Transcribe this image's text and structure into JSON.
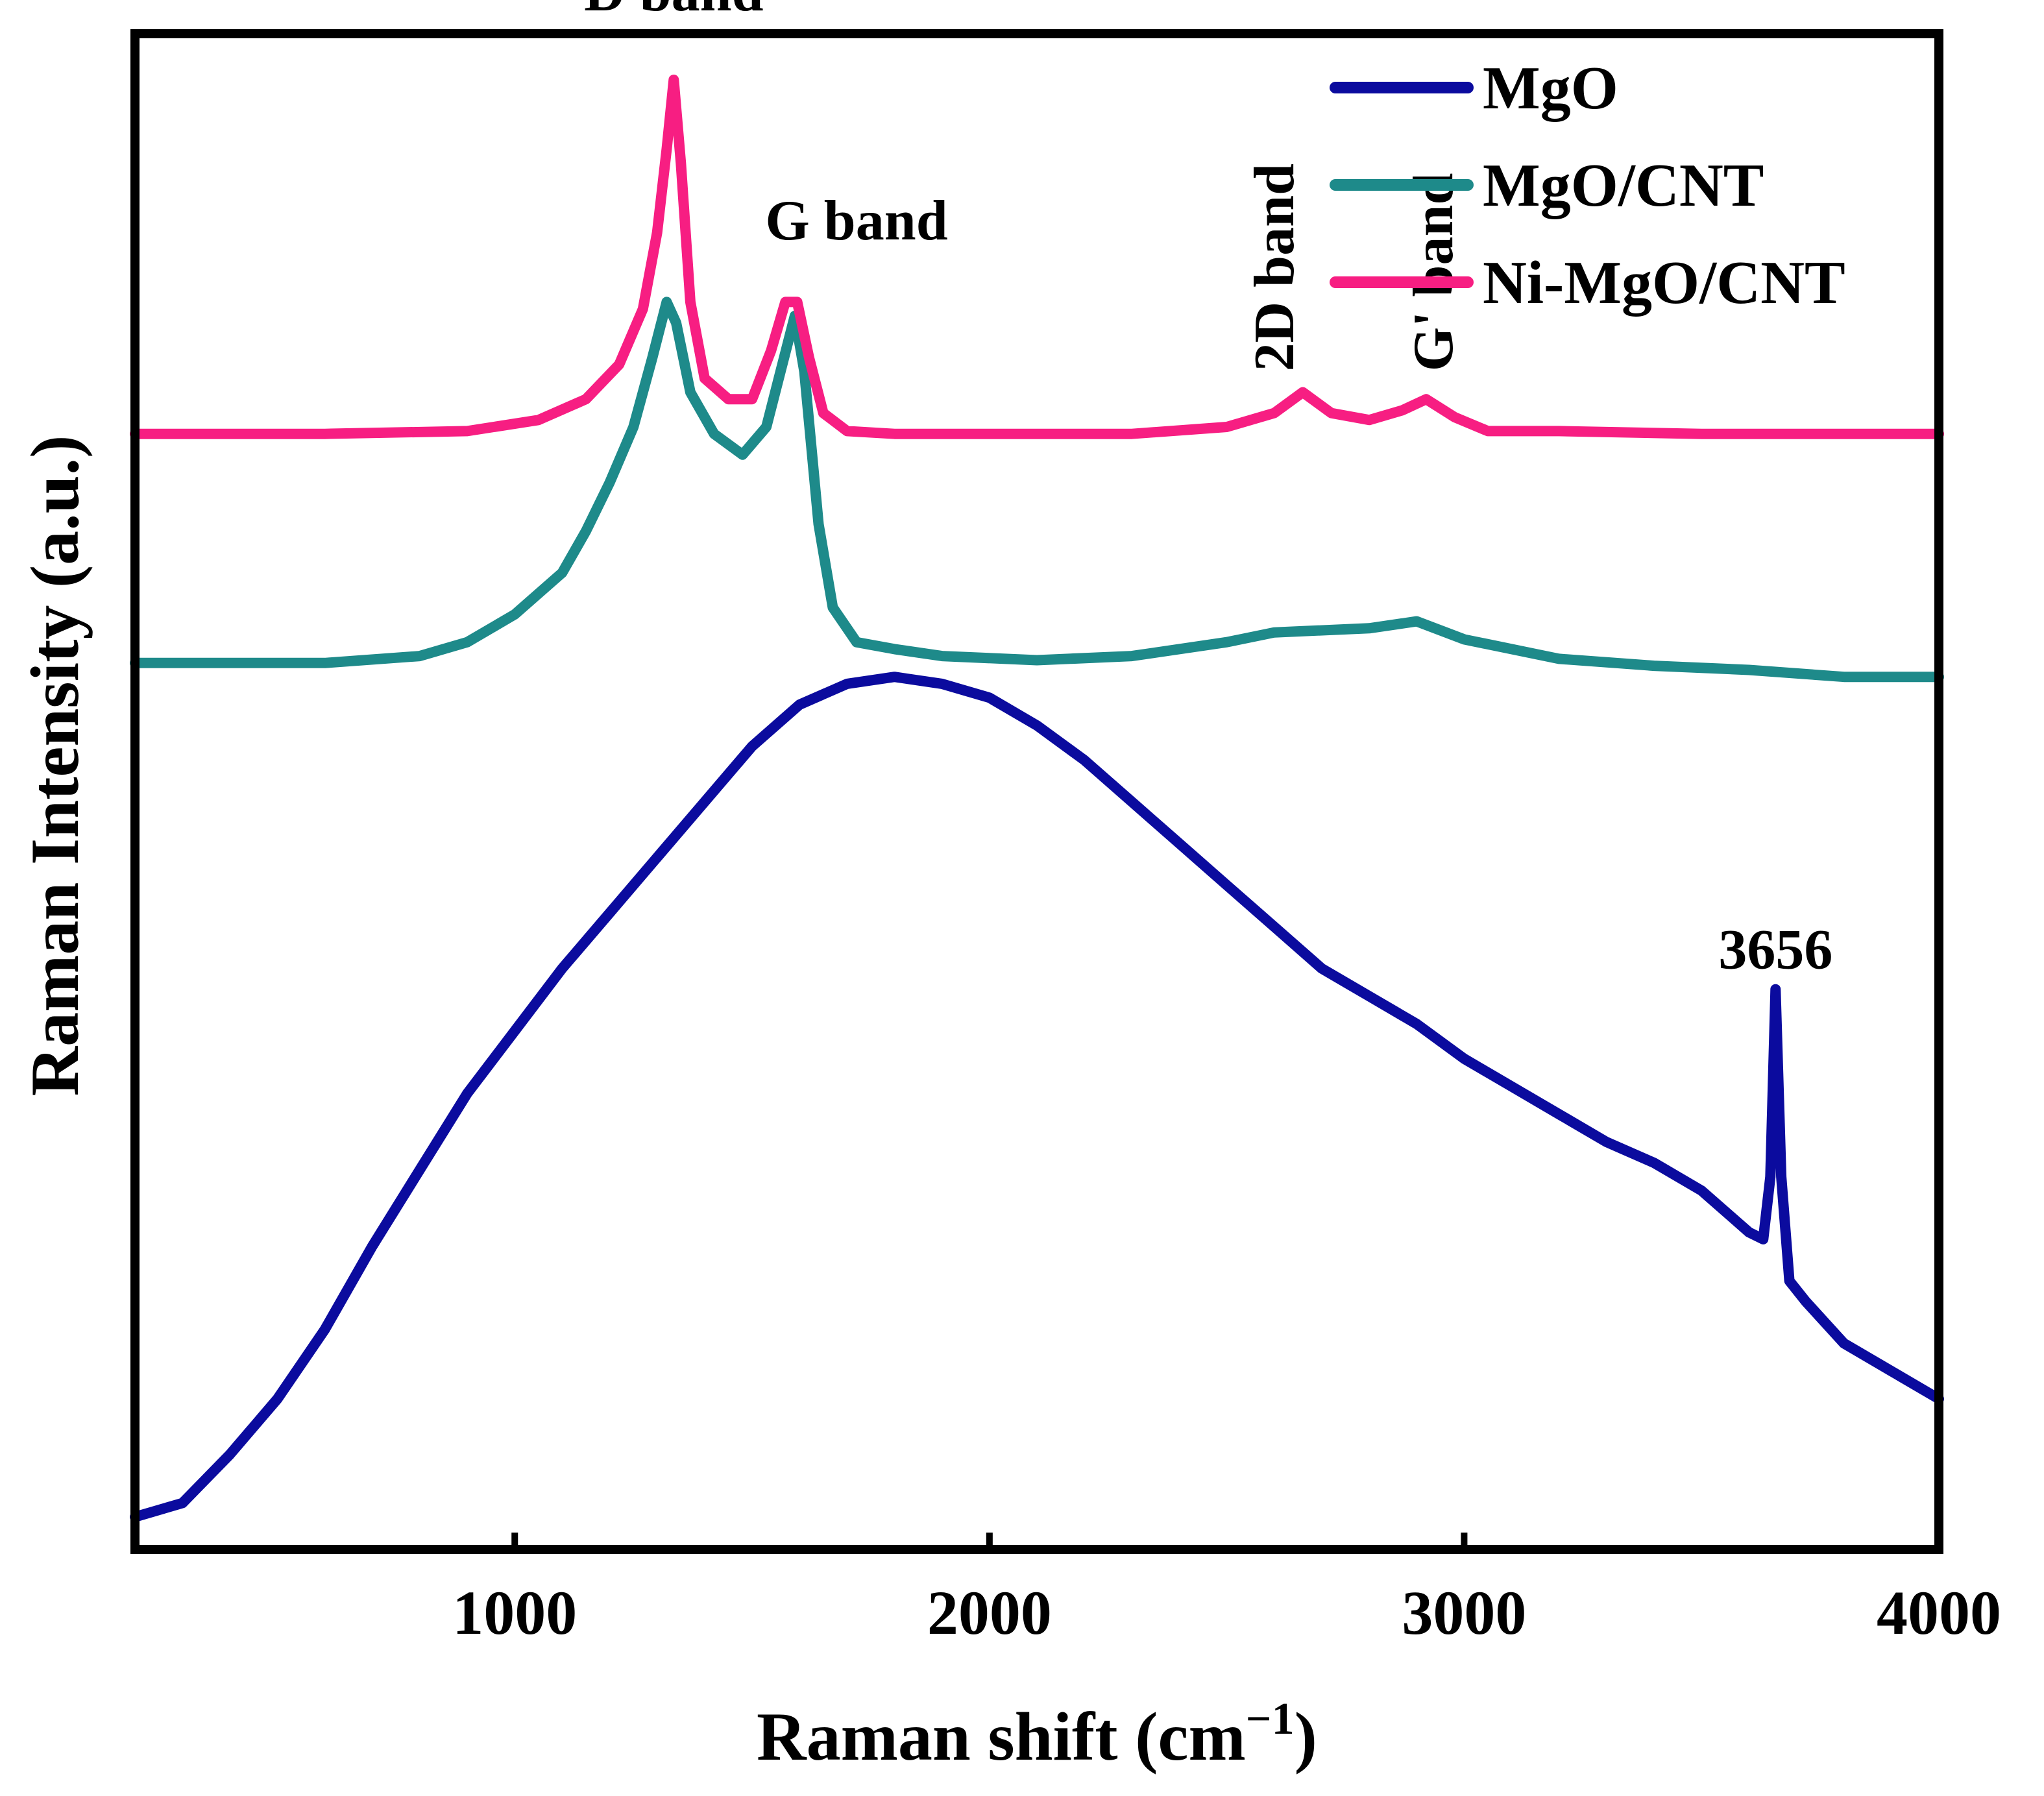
{
  "chart_data": {
    "type": "line",
    "title": "",
    "xlabel": "Raman shift (cm",
    "xlabel_superscript": "−1",
    "xlabel_close": ")",
    "ylabel": "Raman Intensity (a.u.)",
    "xlim": [
      200,
      4000
    ],
    "ylim": [
      0,
      1
    ],
    "x_ticks": [
      1000,
      2000,
      3000,
      4000
    ],
    "x_tick_labels": [
      "1000",
      "2000",
      "3000",
      "4000"
    ],
    "y_ticks_shown": false,
    "grid": false,
    "legend_position": "top-right",
    "series": [
      {
        "name": "MgO",
        "color": "#0b0b9e",
        "x": [
          200,
          300,
          400,
          500,
          600,
          700,
          800,
          900,
          1000,
          1100,
          1200,
          1300,
          1400,
          1500,
          1600,
          1700,
          1800,
          1900,
          2000,
          2100,
          2200,
          2300,
          2400,
          2500,
          2600,
          2700,
          2800,
          2900,
          3000,
          3100,
          3200,
          3300,
          3400,
          3500,
          3600,
          3630,
          3645,
          3656,
          3668,
          3685,
          3720,
          3800,
          3900,
          4000
        ],
        "y": [
          0.015,
          0.025,
          0.06,
          0.1,
          0.15,
          0.21,
          0.265,
          0.32,
          0.365,
          0.41,
          0.45,
          0.49,
          0.53,
          0.57,
          0.6,
          0.615,
          0.62,
          0.615,
          0.605,
          0.585,
          0.56,
          0.53,
          0.5,
          0.47,
          0.44,
          0.41,
          0.39,
          0.37,
          0.345,
          0.325,
          0.305,
          0.285,
          0.27,
          0.25,
          0.22,
          0.215,
          0.26,
          0.395,
          0.26,
          0.185,
          0.17,
          0.14,
          0.12,
          0.1
        ]
      },
      {
        "name": "MgO/CNT",
        "color": "#1e8a8a",
        "x": [
          200,
          400,
          600,
          800,
          900,
          1000,
          1100,
          1150,
          1200,
          1250,
          1290,
          1320,
          1340,
          1370,
          1420,
          1480,
          1530,
          1560,
          1590,
          1610,
          1640,
          1670,
          1720,
          1800,
          1900,
          2100,
          2300,
          2500,
          2600,
          2800,
          2900,
          3000,
          3200,
          3400,
          3600,
          3800,
          4000
        ],
        "y": [
          0.63,
          0.63,
          0.63,
          0.635,
          0.645,
          0.665,
          0.695,
          0.725,
          0.76,
          0.8,
          0.85,
          0.89,
          0.875,
          0.825,
          0.795,
          0.78,
          0.8,
          0.84,
          0.88,
          0.84,
          0.73,
          0.67,
          0.645,
          0.64,
          0.635,
          0.632,
          0.635,
          0.645,
          0.652,
          0.655,
          0.66,
          0.647,
          0.633,
          0.628,
          0.625,
          0.62,
          0.62
        ]
      },
      {
        "name": "Ni-MgO/CNT",
        "color": "#f71e82",
        "x": [
          200,
          600,
          900,
          1050,
          1150,
          1220,
          1270,
          1300,
          1320,
          1335,
          1350,
          1370,
          1400,
          1450,
          1500,
          1540,
          1570,
          1595,
          1620,
          1650,
          1700,
          1800,
          2000,
          2300,
          2500,
          2600,
          2660,
          2720,
          2800,
          2870,
          2920,
          2980,
          3050,
          3200,
          3500,
          4000
        ],
        "y": [
          0.795,
          0.795,
          0.797,
          0.805,
          0.82,
          0.845,
          0.885,
          0.94,
          1.0,
          1.05,
          0.99,
          0.89,
          0.835,
          0.82,
          0.82,
          0.855,
          0.89,
          0.89,
          0.85,
          0.81,
          0.797,
          0.795,
          0.795,
          0.795,
          0.8,
          0.81,
          0.825,
          0.81,
          0.805,
          0.812,
          0.82,
          0.807,
          0.797,
          0.797,
          0.795,
          0.795
        ]
      }
    ],
    "annotations": [
      {
        "text": "D band",
        "x": 1335,
        "y": 1.1,
        "rotate": 0
      },
      {
        "text": "G band",
        "x": 1720,
        "y": 0.935,
        "rotate": 0
      },
      {
        "text": "2D band",
        "x": 2640,
        "y": 0.84,
        "rotate": -90
      },
      {
        "text": "G' band",
        "x": 2975,
        "y": 0.84,
        "rotate": -90
      },
      {
        "text": "3656",
        "x": 3656,
        "y": 0.41,
        "rotate": 0
      }
    ]
  }
}
